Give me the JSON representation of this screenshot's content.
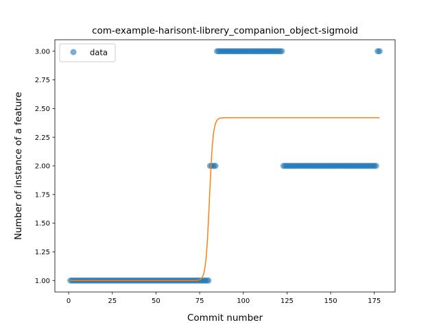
{
  "chart_data": {
    "type": "scatter",
    "title": "com-example-harisont-librery_companion_object-sigmoid",
    "xlabel": "Commit number",
    "ylabel": "Number of instance of a feature",
    "xlim": [
      -7.9,
      186.9
    ],
    "ylim": [
      0.9,
      3.1
    ],
    "xticks": [
      0,
      25,
      50,
      75,
      100,
      125,
      150,
      175
    ],
    "yticks": [
      1.0,
      1.25,
      1.5,
      1.75,
      2.0,
      2.25,
      2.5,
      2.75,
      3.0
    ],
    "ytick_labels": [
      "1.00",
      "1.25",
      "1.50",
      "1.75",
      "2.00",
      "2.25",
      "2.50",
      "2.75",
      "3.00"
    ],
    "grid": false,
    "legend": {
      "position": "top-left",
      "entries": [
        "data"
      ]
    },
    "series": [
      {
        "name": "data",
        "kind": "scatter",
        "color": "#1f77b4",
        "segments": [
          {
            "x_from": 1,
            "x_to": 80,
            "y": 1
          },
          {
            "x_from": 81,
            "x_to": 84,
            "y": 2
          },
          {
            "x_from": 85,
            "x_to": 122,
            "y": 3
          },
          {
            "x_from": 123,
            "x_to": 176,
            "y": 2
          },
          {
            "x_from": 177,
            "x_to": 178,
            "y": 3
          }
        ]
      },
      {
        "kind": "line",
        "color": "#ff7f0e",
        "fit": {
          "type": "sigmoid",
          "lower": 1.0,
          "upper": 2.42,
          "midpoint": 80.6,
          "slope": 0.95,
          "x_from": 1,
          "x_to": 178
        }
      }
    ]
  }
}
